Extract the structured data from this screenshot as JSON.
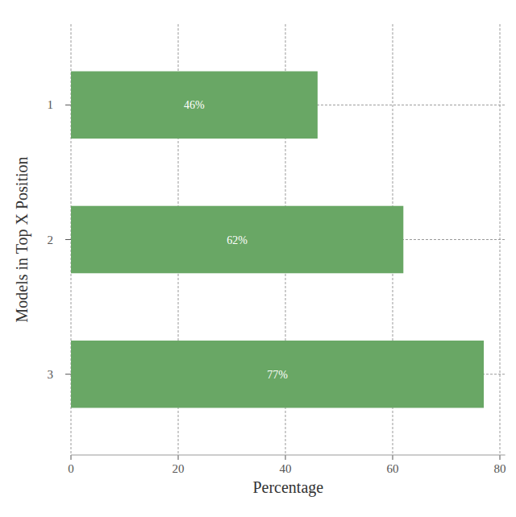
{
  "chart_data": {
    "type": "bar",
    "orientation": "horizontal",
    "categories": [
      "1",
      "2",
      "3"
    ],
    "values": [
      46,
      62,
      77
    ],
    "value_labels": [
      "46%",
      "62%",
      "77%"
    ],
    "data_labels": true,
    "color": "#69a765",
    "x_label": "Percentage",
    "y_label": "Models in Top X Position",
    "xlim": [
      0,
      81
    ],
    "xticks": [
      0,
      20,
      40,
      60,
      80
    ],
    "grid": true
  }
}
